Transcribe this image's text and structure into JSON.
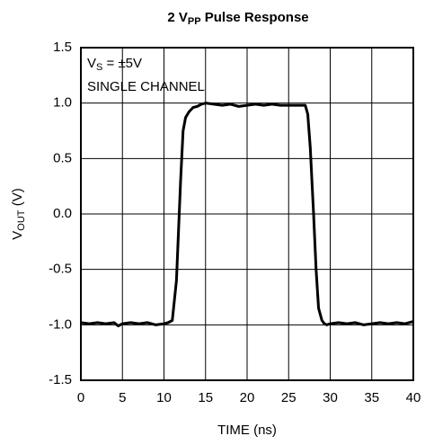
{
  "chart_data": {
    "type": "line",
    "title": [
      "2 V",
      "PP",
      " Pulse Response"
    ],
    "xlabel": "TIME (ns)",
    "ylabel": [
      "V",
      "OUT",
      " (V)"
    ],
    "annotations": [
      [
        "V",
        "S",
        " = ±5V"
      ],
      [
        "SINGLE CHANNEL"
      ]
    ],
    "x": [
      0,
      1,
      2,
      3,
      4,
      4.5,
      5,
      6,
      7,
      8,
      9,
      10,
      10.5,
      11,
      11.5,
      12,
      12.3,
      12.6,
      13,
      13.5,
      14,
      14.5,
      15,
      16,
      17,
      18,
      19,
      20,
      21,
      22,
      23,
      24,
      25,
      26,
      27,
      27.3,
      27.6,
      28,
      28.3,
      28.6,
      29,
      29.3,
      29.6,
      30,
      31,
      32,
      33,
      34,
      35,
      36,
      37,
      38,
      39,
      40
    ],
    "values": [
      -0.98,
      -0.99,
      -0.98,
      -0.99,
      -0.98,
      -1.01,
      -0.99,
      -0.98,
      -0.99,
      -0.98,
      -1.0,
      -0.99,
      -0.98,
      -0.96,
      -0.6,
      0.3,
      0.75,
      0.87,
      0.92,
      0.96,
      0.97,
      0.99,
      1.0,
      0.99,
      0.98,
      0.99,
      0.97,
      0.98,
      0.99,
      0.98,
      0.99,
      0.98,
      0.98,
      0.98,
      0.98,
      0.9,
      0.6,
      0.0,
      -0.5,
      -0.85,
      -0.96,
      -0.99,
      -1.0,
      -0.99,
      -0.98,
      -0.99,
      -0.98,
      -1.0,
      -0.99,
      -0.98,
      -0.99,
      -0.98,
      -0.99,
      -0.97
    ],
    "color": "#000000",
    "xlim": [
      0,
      40
    ],
    "xticks": [
      0,
      5,
      10,
      15,
      20,
      25,
      30,
      35,
      40
    ],
    "ylim": [
      -1.5,
      1.5
    ],
    "yticks": [
      -1.5,
      -0.5,
      {
        "value": -1,
        "label": "-1.0"
      },
      {
        "value": 0,
        "label": "0.0"
      },
      0.5,
      {
        "value": 1,
        "label": "1.0"
      },
      1.5
    ],
    "grid": true
  }
}
